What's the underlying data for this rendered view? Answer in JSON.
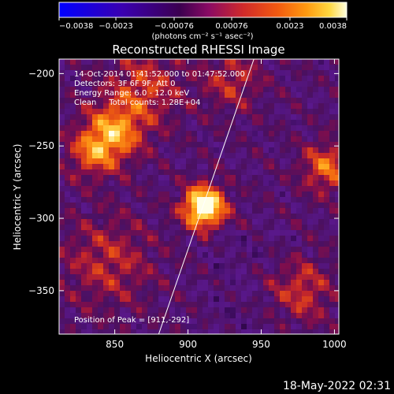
{
  "chart_data": {
    "type": "heatmap",
    "title": "Reconstructed RHESSI Image",
    "xlabel": "Heliocentric X (arcsec)",
    "ylabel": "Heliocentric Y (arcsec)",
    "xlim": [
      812,
      1003
    ],
    "ylim": [
      -380,
      -190
    ],
    "x_ticks": [
      {
        "value": 850,
        "label": "850"
      },
      {
        "value": 900,
        "label": "900"
      },
      {
        "value": 950,
        "label": "950"
      },
      {
        "value": 1000,
        "label": "1000"
      }
    ],
    "y_ticks": [
      {
        "value": -200,
        "label": "−200"
      },
      {
        "value": -250,
        "label": "−250"
      },
      {
        "value": -300,
        "label": "−300"
      },
      {
        "value": -350,
        "label": "−350"
      }
    ],
    "colorbar": {
      "range": [
        -0.0038,
        0.0038
      ],
      "ticks": [
        {
          "value": -0.0038,
          "label": "−0.0038"
        },
        {
          "value": -0.0023,
          "label": "−0.0023"
        },
        {
          "value": -0.00076,
          "label": "−0.00076"
        },
        {
          "value": 0.00076,
          "label": "0.00076"
        },
        {
          "value": 0.0023,
          "label": "0.0023"
        },
        {
          "value": 0.0038,
          "label": "0.0038"
        }
      ],
      "units_label": "(photons cm⁻² s⁻¹ asec⁻²)",
      "colors": [
        "#0000ff",
        "#3a00b0",
        "#3c0050",
        "#8a0a64",
        "#d02a2a",
        "#f25a10",
        "#ff9a10",
        "#ffd840",
        "#ffffe0"
      ]
    },
    "annotations": [
      "14-Oct-2014 01:41:52.000 to 01:47:52.000",
      "Detectors: 3F 6F 9F, Att 0",
      "Energy Range: 6.0 - 12.0 keV",
      "Clean     Total counts: 1.28E+04"
    ],
    "peak": {
      "x": 911,
      "y": -292,
      "label": "Position of Peak = [911,-292]"
    },
    "limb_line": [
      {
        "x": 880,
        "y": -380
      },
      {
        "x": 945,
        "y": -190
      }
    ]
  },
  "footer": {
    "timestamp": "18-May-2022 02:31"
  }
}
